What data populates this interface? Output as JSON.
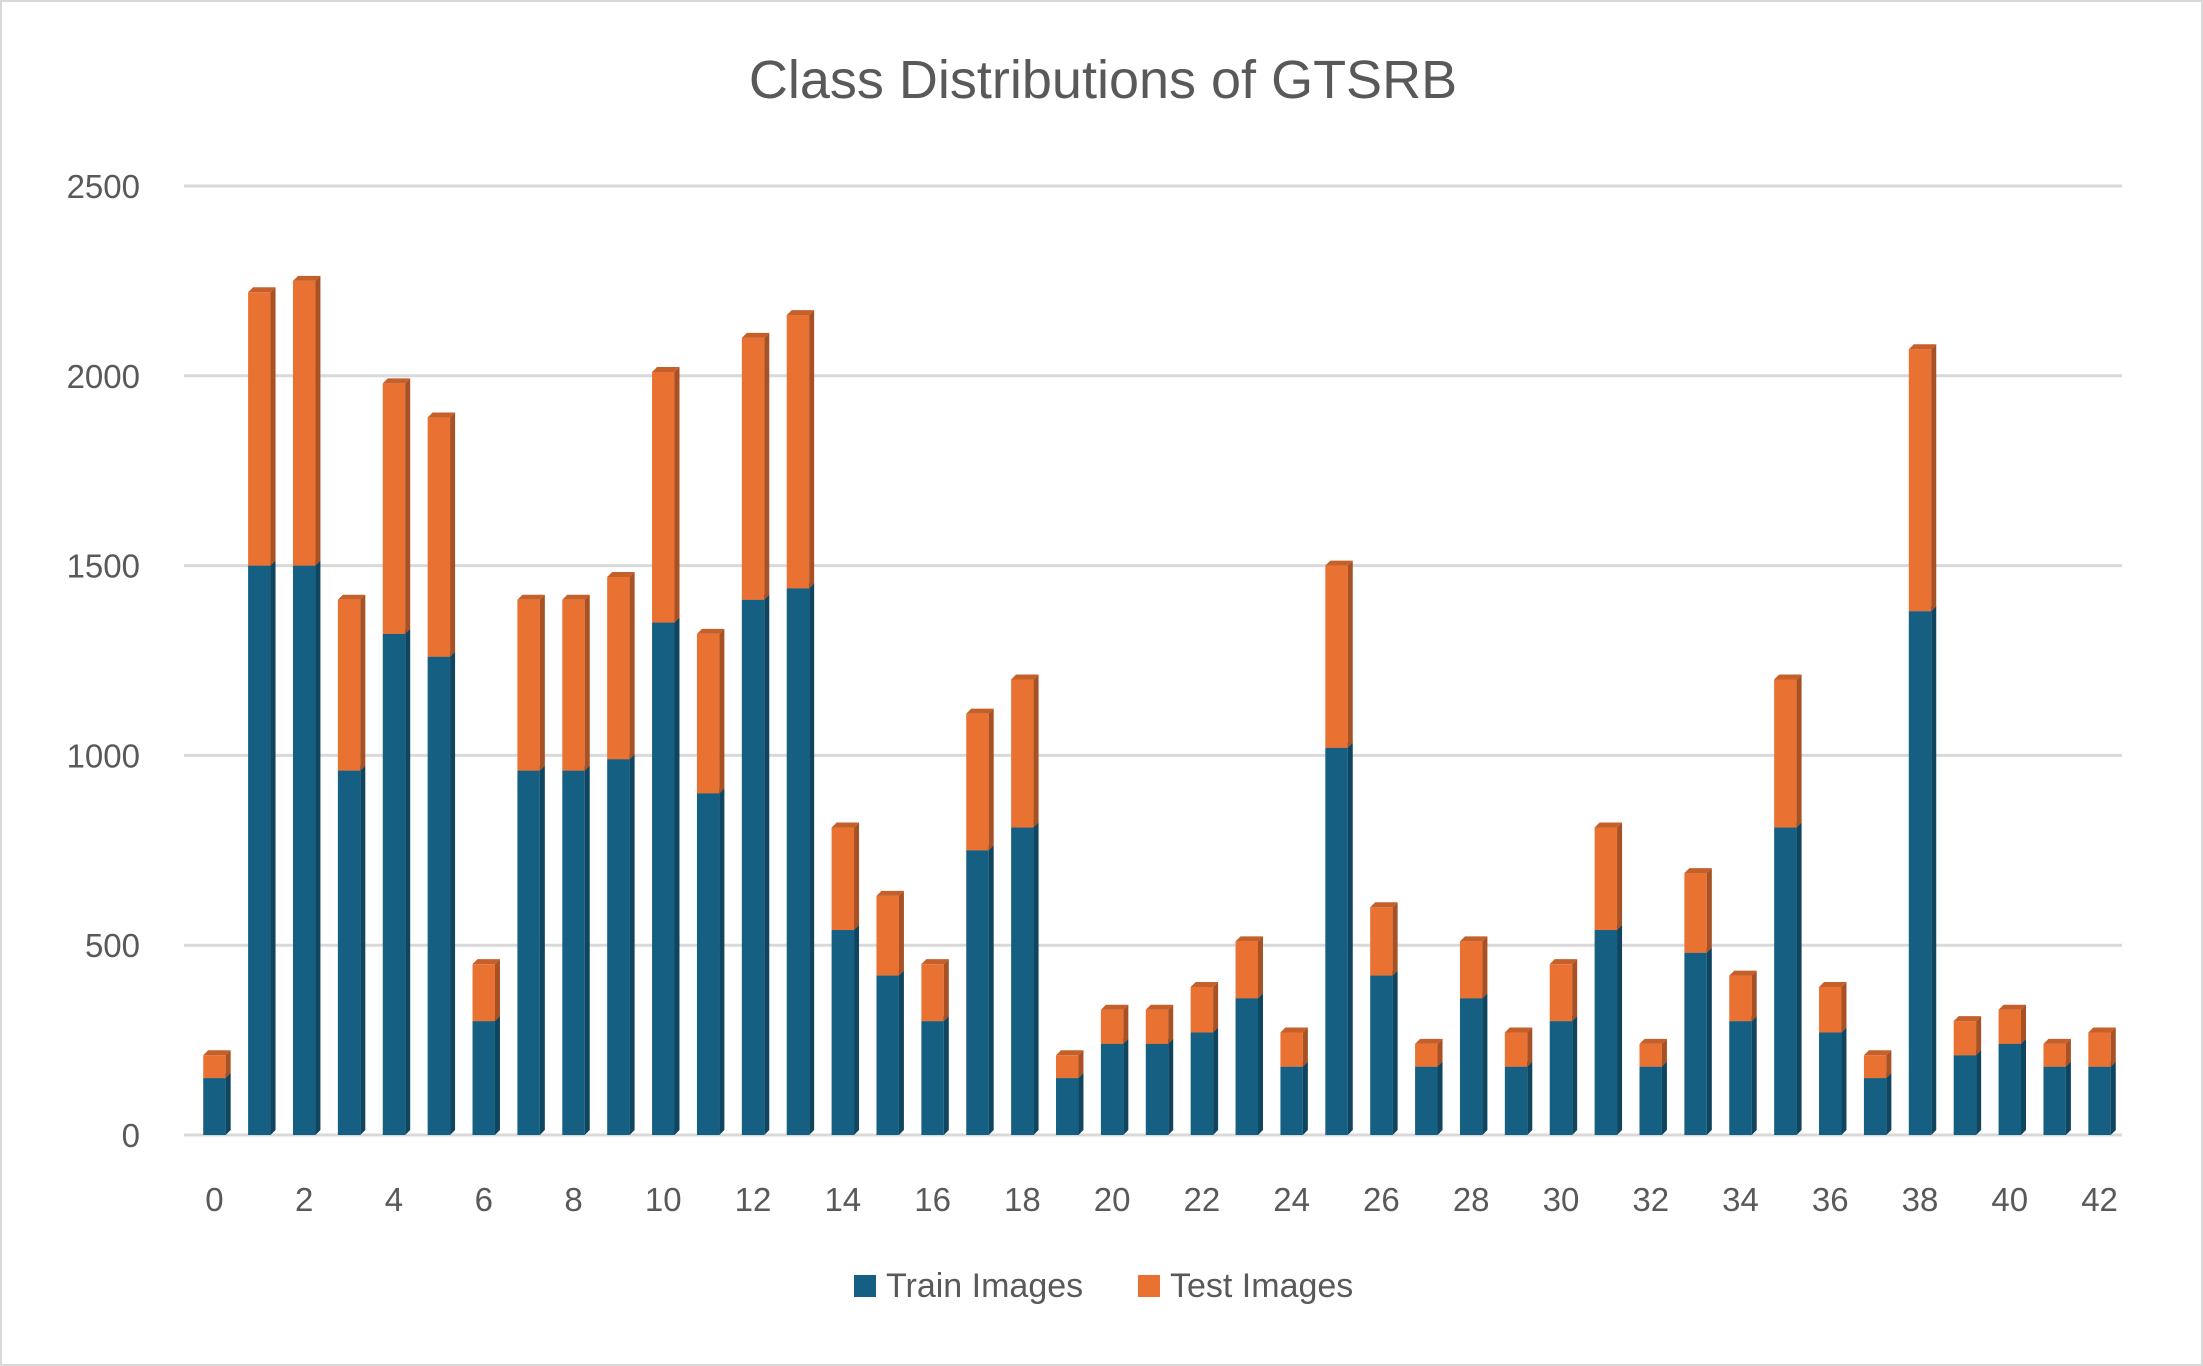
{
  "chart_data": {
    "type": "bar",
    "stacked": true,
    "title": "Class Distributions of GTSRB",
    "xlabel": "",
    "ylabel": "",
    "ylim": [
      0,
      2500
    ],
    "yticks": [
      0,
      500,
      1000,
      1500,
      2000,
      2500
    ],
    "categories": [
      "0",
      "1",
      "2",
      "3",
      "4",
      "5",
      "6",
      "7",
      "8",
      "9",
      "10",
      "11",
      "12",
      "13",
      "14",
      "15",
      "16",
      "17",
      "18",
      "19",
      "20",
      "21",
      "22",
      "23",
      "24",
      "25",
      "26",
      "27",
      "28",
      "29",
      "30",
      "31",
      "32",
      "33",
      "34",
      "35",
      "36",
      "37",
      "38",
      "39",
      "40",
      "41",
      "42"
    ],
    "x_tick_labels": [
      "0",
      "2",
      "4",
      "6",
      "8",
      "10",
      "12",
      "14",
      "16",
      "18",
      "20",
      "22",
      "24",
      "26",
      "28",
      "30",
      "32",
      "34",
      "36",
      "38",
      "40",
      "42"
    ],
    "grid": true,
    "legend_position": "bottom",
    "series": [
      {
        "name": "Train Images",
        "color": "#156082",
        "values": [
          150,
          1500,
          1500,
          960,
          1320,
          1260,
          300,
          960,
          960,
          990,
          1350,
          900,
          1410,
          1440,
          540,
          420,
          300,
          750,
          810,
          150,
          240,
          240,
          270,
          360,
          180,
          1020,
          420,
          180,
          360,
          180,
          300,
          540,
          180,
          480,
          300,
          810,
          270,
          150,
          1380,
          210,
          240,
          180,
          180
        ]
      },
      {
        "name": "Test Images",
        "color": "#E97132",
        "values": [
          60,
          720,
          750,
          450,
          660,
          630,
          150,
          450,
          450,
          480,
          660,
          420,
          690,
          720,
          270,
          210,
          150,
          360,
          390,
          60,
          90,
          90,
          120,
          150,
          90,
          480,
          180,
          60,
          150,
          90,
          150,
          270,
          60,
          210,
          120,
          390,
          120,
          60,
          690,
          90,
          90,
          60,
          90
        ]
      }
    ]
  }
}
